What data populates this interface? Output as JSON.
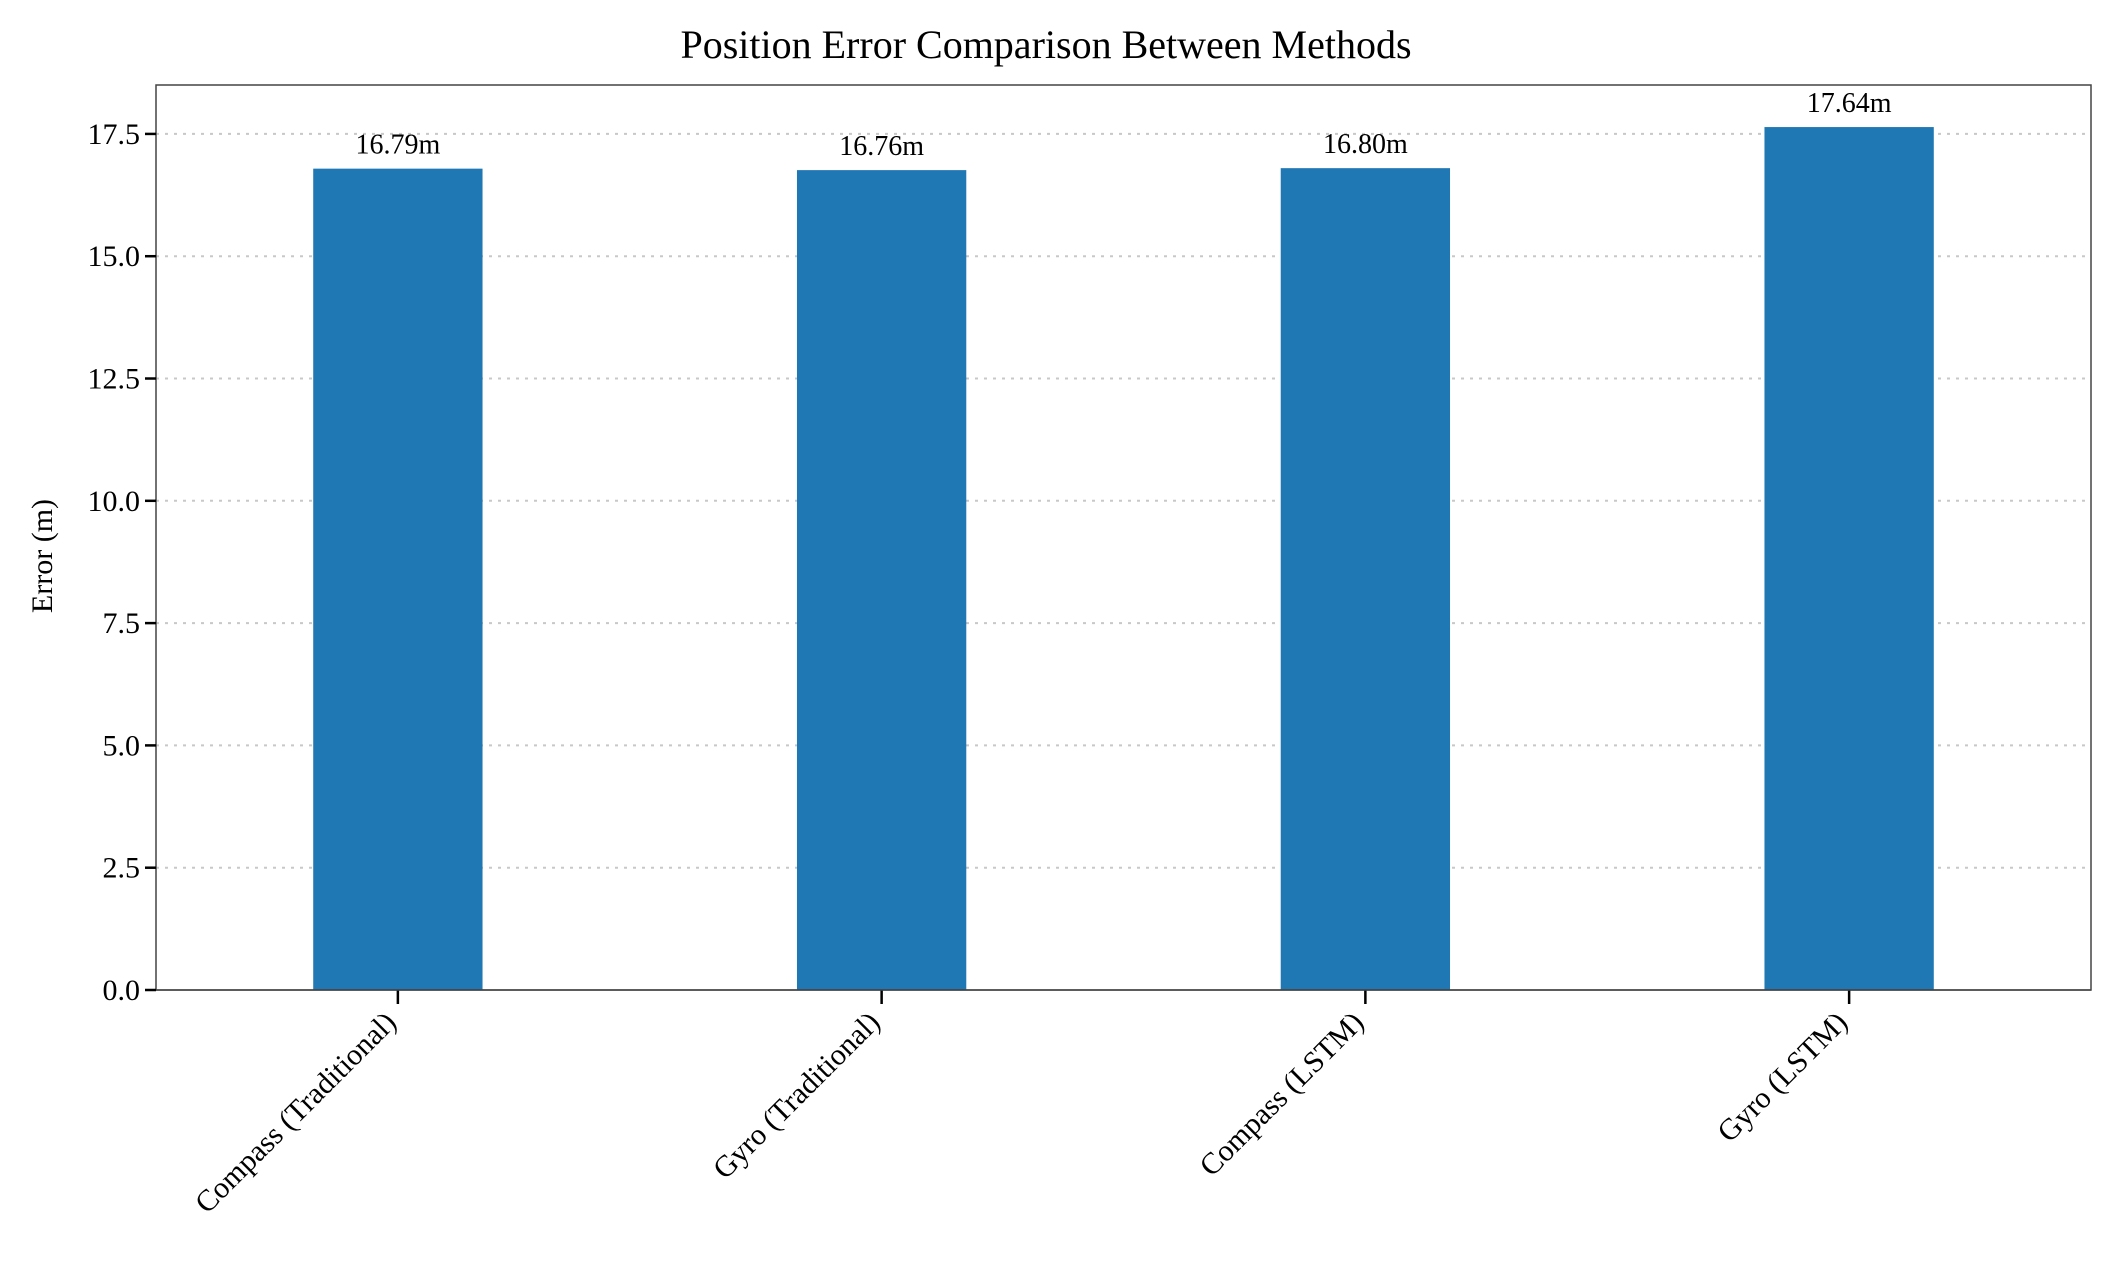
{
  "chart_data": {
    "type": "bar",
    "title": "Position Error Comparison Between Methods",
    "xlabel": "",
    "ylabel": "Error (m)",
    "categories": [
      "Compass (Traditional)",
      "Gyro (Traditional)",
      "Compass (LSTM)",
      "Gyro (LSTM)"
    ],
    "values": [
      16.79,
      16.76,
      16.8,
      17.64
    ],
    "value_labels": [
      "16.79m",
      "16.76m",
      "16.80m",
      "17.64m"
    ],
    "ylim": [
      0,
      18.5
    ],
    "yticks": [
      0.0,
      2.5,
      5.0,
      7.5,
      10.0,
      12.5,
      15.0,
      17.5
    ],
    "ytick_labels": [
      "0.0",
      "2.5",
      "5.0",
      "7.5",
      "10.0",
      "12.5",
      "15.0",
      "17.5"
    ],
    "grid": "y-dotted",
    "legend": "none",
    "bar_color": "#1f77b4"
  }
}
